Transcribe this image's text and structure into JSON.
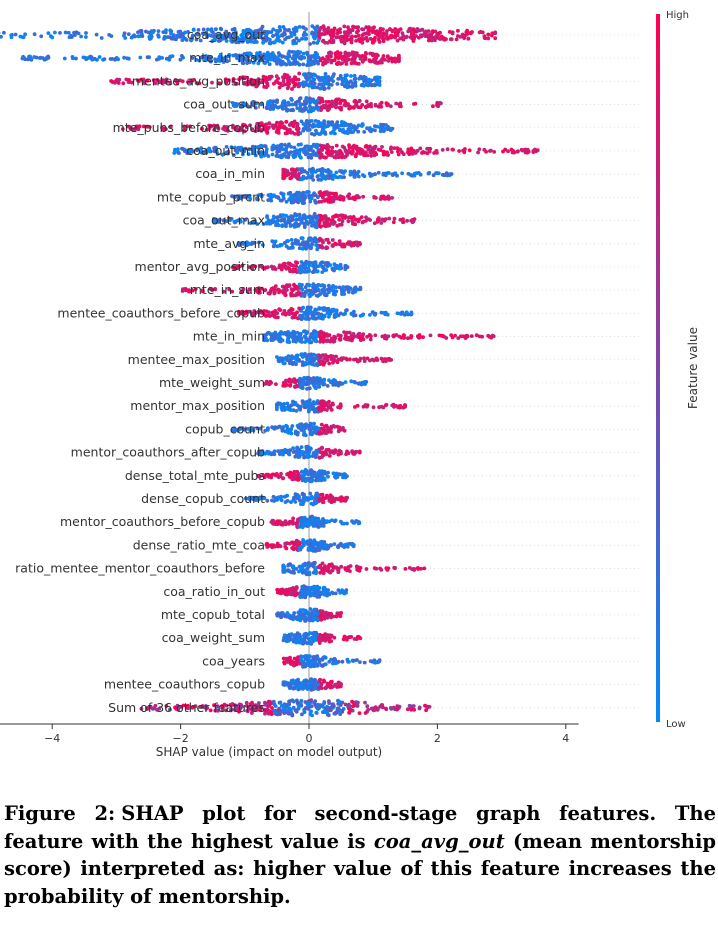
{
  "chart_data": {
    "type": "scatter",
    "subtype": "shap-beeswarm",
    "xlabel": "SHAP value (impact on model output)",
    "xlim": [
      -6.6,
      4.2
    ],
    "xticks": [
      -6,
      -4,
      -2,
      0,
      2,
      4
    ],
    "colorbar": {
      "label": "Feature value",
      "high": "High",
      "low": "Low",
      "high_color": "#ff0052",
      "low_color": "#008bfb"
    },
    "features": [
      {
        "name": "coa_avg_out",
        "range": [
          -6.2,
          2.9
        ],
        "width": 9,
        "high_side": "right"
      },
      {
        "name": "mte_in_max",
        "range": [
          -4.5,
          1.4
        ],
        "width": 7,
        "high_side": "right"
      },
      {
        "name": "mentee_avg_position",
        "range": [
          -3.1,
          1.1
        ],
        "width": 8,
        "high_side": "left"
      },
      {
        "name": "coa_out_sum",
        "range": [
          -1.2,
          2.1
        ],
        "width": 7,
        "high_side": "right"
      },
      {
        "name": "mte_pubs_before_copub",
        "range": [
          -2.9,
          1.3
        ],
        "width": 7,
        "high_side": "left"
      },
      {
        "name": "coa_out_min",
        "range": [
          -2.1,
          3.6
        ],
        "width": 7,
        "high_side": "right"
      },
      {
        "name": "coa_in_min",
        "range": [
          -0.4,
          2.3
        ],
        "width": 6,
        "high_side": "left"
      },
      {
        "name": "mte_copub_prcnt",
        "range": [
          -1.2,
          1.3
        ],
        "width": 6,
        "high_side": "right"
      },
      {
        "name": "coa_out_max",
        "range": [
          -1.5,
          1.7
        ],
        "width": 7,
        "high_side": "right"
      },
      {
        "name": "mte_avg_in",
        "range": [
          -1.1,
          0.8
        ],
        "width": 6,
        "high_side": "right"
      },
      {
        "name": "mentor_avg_position",
        "range": [
          -1.2,
          0.6
        ],
        "width": 6,
        "high_side": "left"
      },
      {
        "name": "mte_in_sum",
        "range": [
          -2.0,
          0.8
        ],
        "width": 6,
        "high_side": "left"
      },
      {
        "name": "mentee_coauthors_before_copub",
        "range": [
          -1.1,
          1.6
        ],
        "width": 6,
        "high_side": "left"
      },
      {
        "name": "mte_in_min",
        "range": [
          -0.7,
          2.9
        ],
        "width": 6,
        "high_side": "right"
      },
      {
        "name": "mentee_max_position",
        "range": [
          -0.5,
          1.3
        ],
        "width": 6,
        "high_side": "right"
      },
      {
        "name": "mte_weight_sum",
        "range": [
          -0.7,
          0.9
        ],
        "width": 6,
        "high_side": "left"
      },
      {
        "name": "mentor_max_position",
        "range": [
          -0.5,
          1.5
        ],
        "width": 6,
        "high_side": "right"
      },
      {
        "name": "copub_count",
        "range": [
          -1.2,
          0.6
        ],
        "width": 6,
        "high_side": "right"
      },
      {
        "name": "mentor_coauthors_after_copub",
        "range": [
          -0.8,
          0.8
        ],
        "width": 6,
        "high_side": "right"
      },
      {
        "name": "dense_total_mte_pubs",
        "range": [
          -0.8,
          0.6
        ],
        "width": 6,
        "high_side": "left"
      },
      {
        "name": "dense_copub_count",
        "range": [
          -1.0,
          0.6
        ],
        "width": 6,
        "high_side": "right"
      },
      {
        "name": "mentor_coauthors_before_copub",
        "range": [
          -0.6,
          0.8
        ],
        "width": 6,
        "high_side": "left"
      },
      {
        "name": "dense_ratio_mte_coa",
        "range": [
          -0.7,
          0.7
        ],
        "width": 6,
        "high_side": "left"
      },
      {
        "name": "ratio_mentee_mentor_coauthors_before",
        "range": [
          -0.4,
          1.8
        ],
        "width": 6,
        "high_side": "right"
      },
      {
        "name": "coa_ratio_in_out",
        "range": [
          -0.5,
          0.6
        ],
        "width": 6,
        "high_side": "left"
      },
      {
        "name": "mte_copub_total",
        "range": [
          -0.5,
          0.5
        ],
        "width": 6,
        "high_side": "right"
      },
      {
        "name": "coa_weight_sum",
        "range": [
          -0.4,
          0.8
        ],
        "width": 6,
        "high_side": "right"
      },
      {
        "name": "coa_years",
        "range": [
          -0.4,
          1.1
        ],
        "width": 6,
        "high_side": "left"
      },
      {
        "name": "mentee_coauthors_copub",
        "range": [
          -0.4,
          0.5
        ],
        "width": 6,
        "high_side": "right"
      },
      {
        "name": "Sum of 36 other features",
        "range": [
          -2.7,
          1.9
        ],
        "width": 8,
        "high_side": "mixed"
      }
    ]
  },
  "caption": {
    "label": "Figure 2:",
    "text_before": "SHAP plot for second-stage graph features. The feature with the highest value is",
    "feature": "coa_avg_out",
    "text_after": "(mean mentorship score) interpreted as: higher value of this feature increases the probability of mentorship."
  }
}
